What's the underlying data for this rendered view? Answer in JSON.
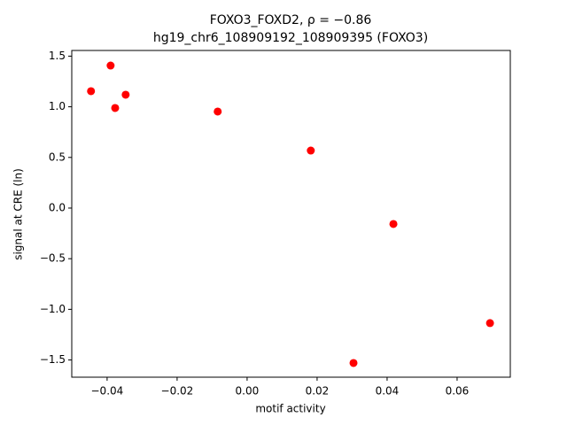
{
  "chart_data": {
    "type": "scatter",
    "title": "FOXO3_FOXD2, ρ = −0.86",
    "subtitle": "hg19_chr6_108909192_108909395 (FOXO3)",
    "x_label": "motif activity",
    "y_label": "signal at CRE (ln)",
    "series": [
      {
        "color": "#ff0000",
        "x": [
          -0.0446,
          -0.039,
          -0.0377,
          -0.0347,
          -0.0084,
          0.0182,
          0.0418,
          0.0694,
          0.0304
        ],
        "values": [
          1.154,
          1.407,
          0.988,
          1.119,
          0.953,
          0.568,
          -0.157,
          -1.136,
          -1.53
        ]
      }
    ],
    "xlim": [
      -0.0501,
      0.0752
    ],
    "ylim": [
      -1.67,
      1.556
    ],
    "xticks": [
      {
        "value": -0.04,
        "label": "−0.04"
      },
      {
        "value": -0.02,
        "label": "−0.02"
      },
      {
        "value": 0,
        "label": "0.00"
      },
      {
        "value": 0.02,
        "label": "0.02"
      },
      {
        "value": 0.04,
        "label": "0.04"
      },
      {
        "value": 0.06,
        "label": "0.06"
      }
    ],
    "yticks": [
      {
        "value": -1.5,
        "label": "−1.5"
      },
      {
        "value": -1.0,
        "label": "−1.0"
      },
      {
        "value": -0.5,
        "label": "−0.5"
      },
      {
        "value": 0,
        "label": "0.0"
      },
      0.5,
      {
        "value": 1.0,
        "label": "1.0"
      },
      1.5
    ],
    "grid": false
  }
}
